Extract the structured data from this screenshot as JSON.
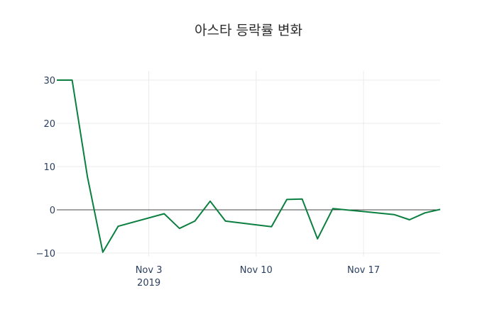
{
  "chart_data": {
    "type": "line",
    "title": "아스타 등락률 변화",
    "xlabel": "",
    "ylabel": "",
    "x": [
      "2019-10-28",
      "2019-10-29",
      "2019-10-30",
      "2019-10-31",
      "2019-11-01",
      "2019-11-04",
      "2019-11-05",
      "2019-11-06",
      "2019-11-07",
      "2019-11-08",
      "2019-11-11",
      "2019-11-12",
      "2019-11-13",
      "2019-11-14",
      "2019-11-15",
      "2019-11-19",
      "2019-11-20",
      "2019-11-21",
      "2019-11-22"
    ],
    "series": [
      {
        "name": "등락률",
        "color": "#0a7f3f",
        "values": [
          30,
          30,
          7.6,
          -9.8,
          -3.8,
          -0.9,
          -4.3,
          -2.6,
          2.0,
          -2.6,
          -3.9,
          2.4,
          2.5,
          -6.7,
          0.3,
          -1.1,
          -2.3,
          -0.7,
          0.1
        ]
      }
    ],
    "ylim": [
      -11.5,
      32
    ],
    "yticks": [
      30,
      20,
      10,
      0,
      -10
    ],
    "ytick_labels": [
      "30",
      "20",
      "10",
      "0",
      "−10"
    ],
    "xticks": [
      "2019-11-03",
      "2019-11-10",
      "2019-11-17"
    ],
    "xtick_labels": [
      "Nov 3",
      "Nov 10",
      "Nov 17"
    ],
    "xtick_sublabel": "2019",
    "grid": true,
    "zero_line": true,
    "legend": false
  }
}
